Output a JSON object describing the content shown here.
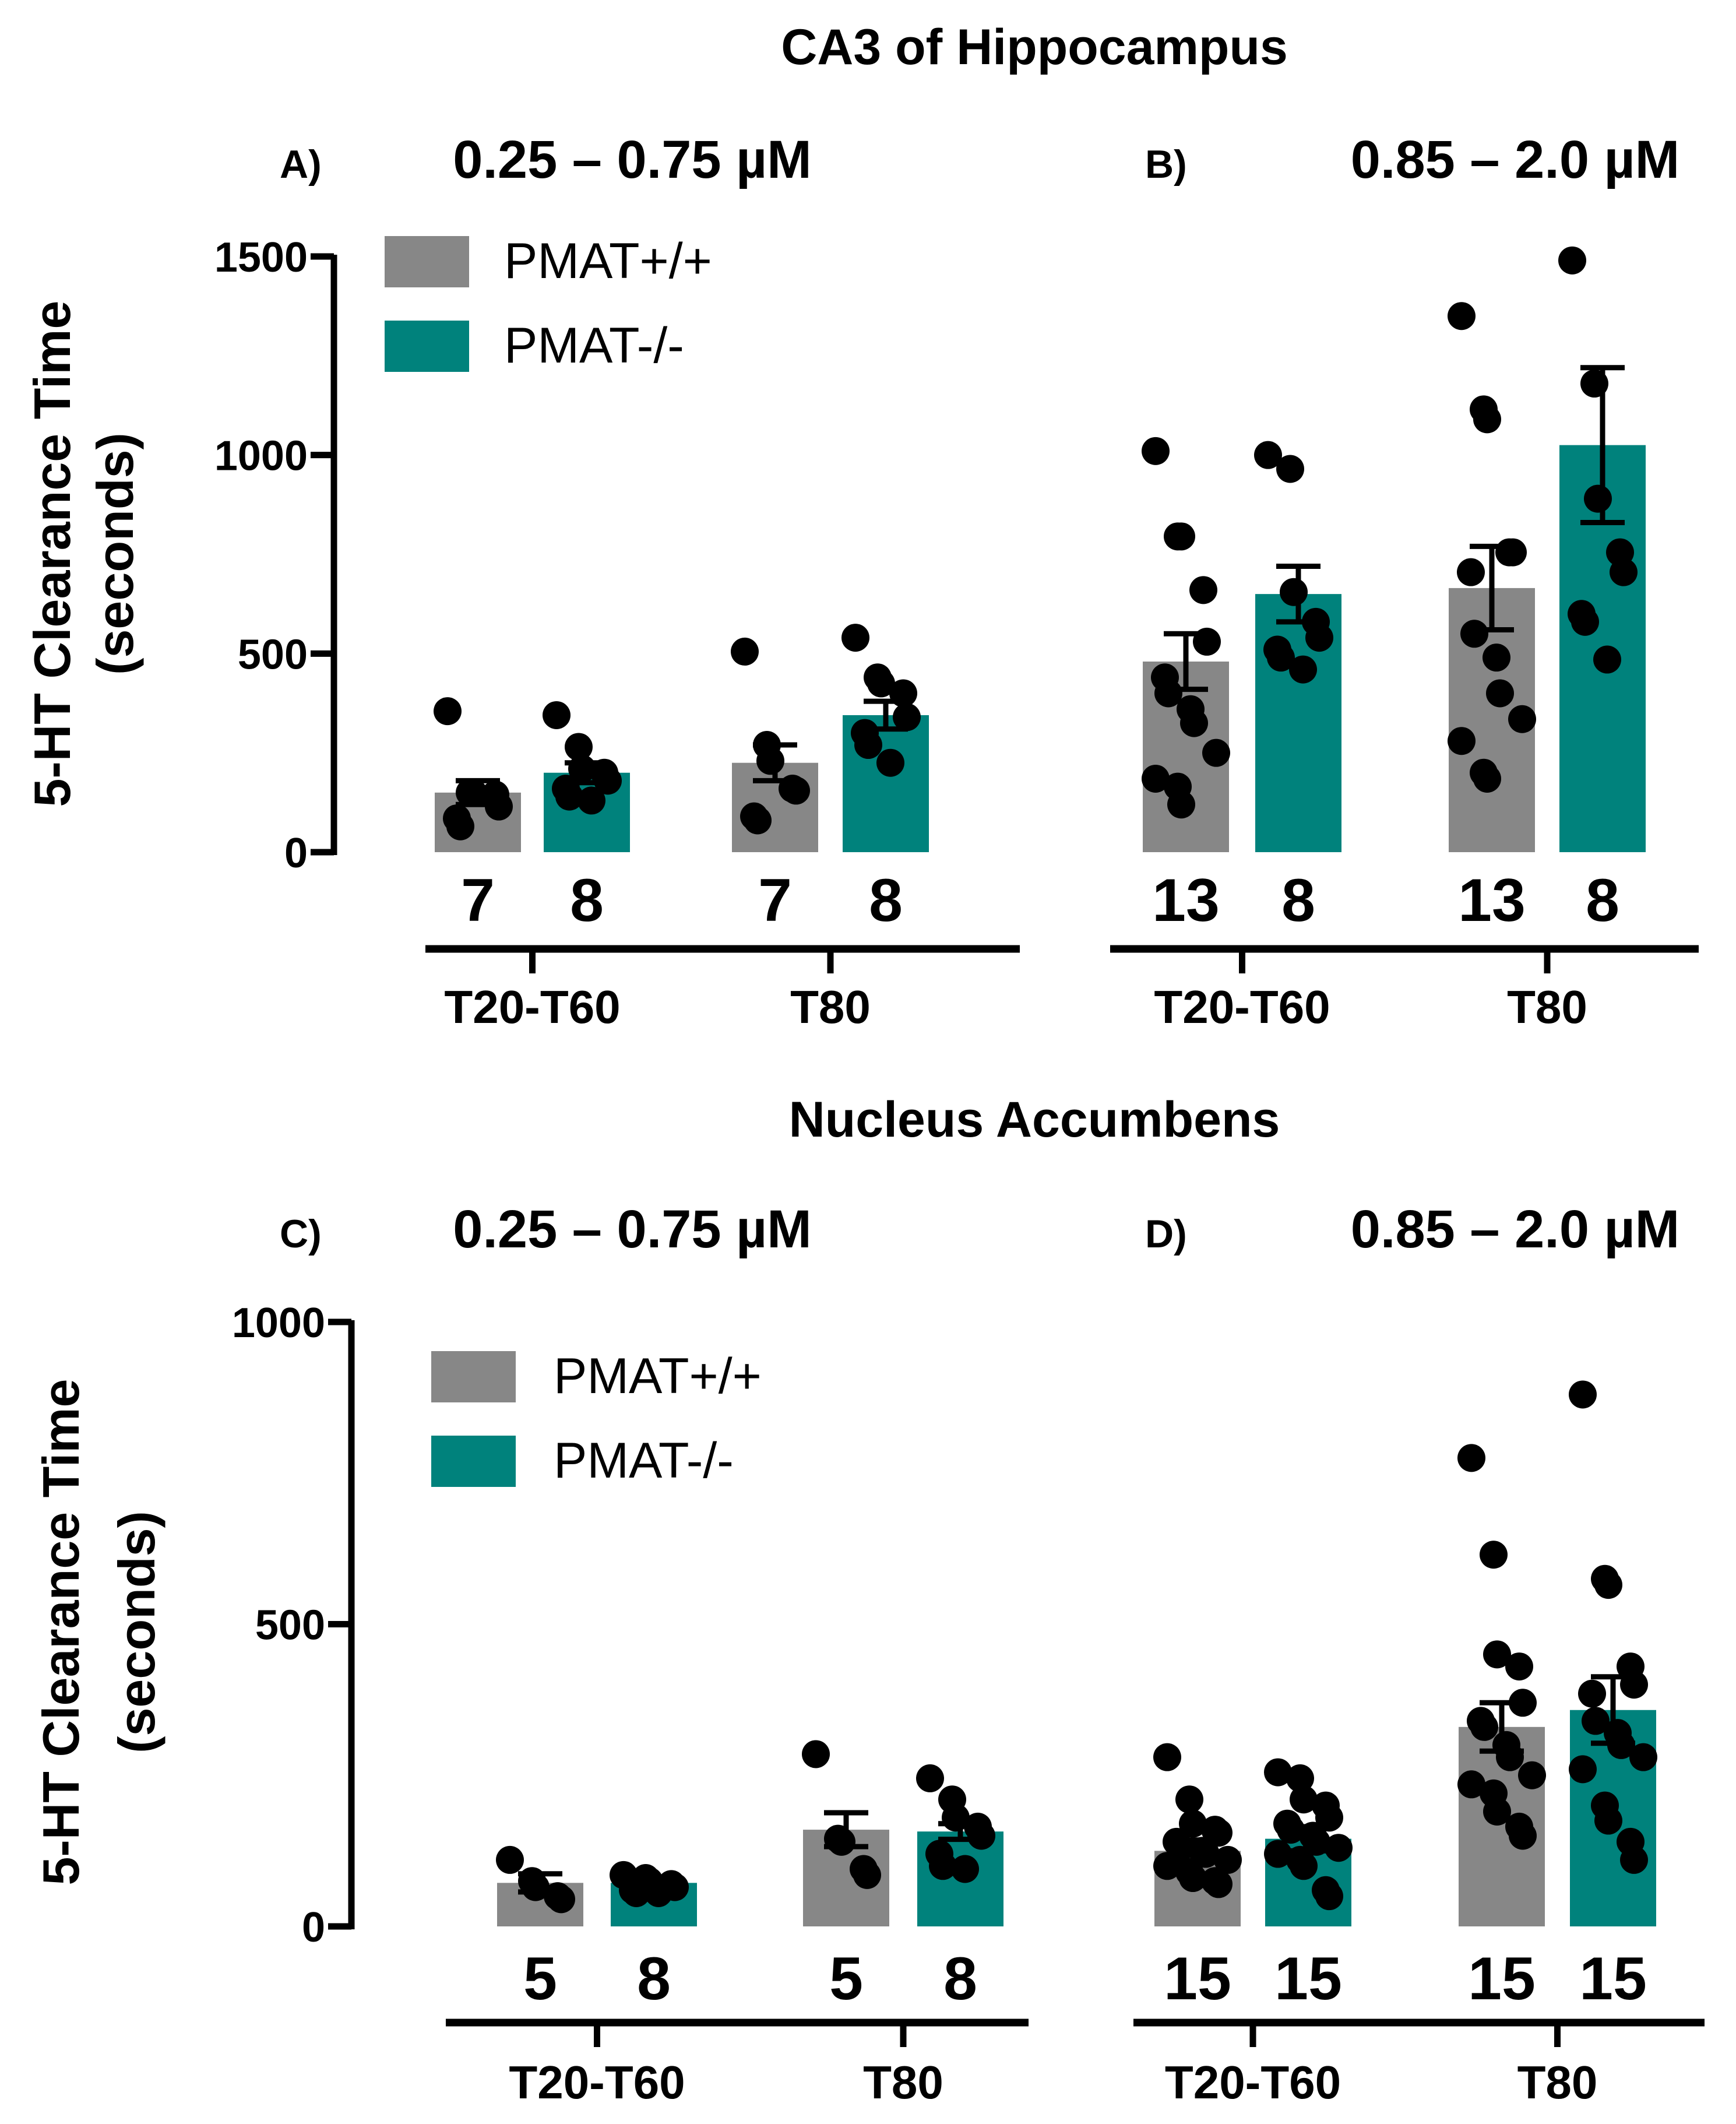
{
  "figure": {
    "colors": {
      "wt": "#878787",
      "ko": "#00827c",
      "ink": "#000000"
    }
  },
  "sections": [
    {
      "title": "CA3 of Hippocampus"
    },
    {
      "title": "Nucleus Accumbens"
    }
  ],
  "legend": {
    "wt_label": "PMAT+/+",
    "ko_label": "PMAT-/-"
  },
  "chart_data": [
    {
      "type": "bar",
      "panel": "A)",
      "subtitle": "0.25 – 0.75 µM",
      "section": "CA3 of Hippocampus",
      "ylabel": "5-HT Clearance Time (seconds)",
      "ylim": [
        0,
        1500
      ],
      "yticks": [
        0,
        500,
        1000,
        1500
      ],
      "categories": [
        "T20-T60",
        "T80"
      ],
      "series": [
        {
          "name": "PMAT+/+",
          "values": [
            150,
            225
          ],
          "sem": [
            30,
            45
          ],
          "n": [
            "7",
            "7"
          ],
          "points": [
            [
              355,
              150,
              150,
              145,
              115,
              85,
              65
            ],
            [
              505,
              270,
              230,
              160,
              155,
              90,
              80
            ]
          ]
        },
        {
          "name": "PMAT-/-",
          "values": [
            200,
            345
          ],
          "sem": [
            25,
            35
          ],
          "n": [
            "8",
            "8"
          ],
          "points": [
            [
              345,
              265,
              210,
              200,
              180,
              160,
              140,
              130
            ],
            [
              540,
              440,
              425,
              400,
              340,
              300,
              270,
              225
            ]
          ]
        }
      ]
    },
    {
      "type": "bar",
      "panel": "B)",
      "subtitle": "0.85 – 2.0 µM",
      "section": "CA3 of Hippocampus",
      "ylabel": "5-HT Clearance Time (seconds)",
      "ylim": [
        0,
        1500
      ],
      "yticks": [
        0,
        500,
        1000,
        1500
      ],
      "categories": [
        "T20-T60",
        "T80"
      ],
      "series": [
        {
          "name": "PMAT+/+",
          "values": [
            480,
            665
          ],
          "sem": [
            70,
            105
          ],
          "n": [
            "13",
            "13"
          ],
          "points": [
            [
              1010,
              795,
              795,
              660,
              530,
              440,
              400,
              360,
              325,
              250,
              185,
              165,
              120
            ],
            [
              1350,
              1115,
              1090,
              755,
              755,
              705,
              550,
              490,
              400,
              335,
              280,
              200,
              185
            ]
          ]
        },
        {
          "name": "PMAT-/-",
          "values": [
            650,
            1025
          ],
          "sem": [
            70,
            195
          ],
          "n": [
            "8",
            "8"
          ],
          "points": [
            [
              1000,
              965,
              655,
              580,
              540,
              510,
              490,
              460
            ],
            [
              1490,
              1180,
              890,
              755,
              705,
              600,
              580,
              485
            ]
          ]
        }
      ]
    },
    {
      "type": "bar",
      "panel": "C)",
      "subtitle": "0.25 – 0.75 µM",
      "section": "Nucleus Accumbens",
      "ylabel": "5-HT Clearance Time (seconds)",
      "ylim": [
        0,
        1000
      ],
      "yticks": [
        0,
        500,
        1000
      ],
      "categories": [
        "T20-T60",
        "T80"
      ],
      "series": [
        {
          "name": "PMAT+/+",
          "values": [
            72,
            160
          ],
          "sem": [
            15,
            28
          ],
          "n": [
            "5",
            "5"
          ],
          "points": [
            [
              110,
              75,
              65,
              50,
              45
            ],
            [
              285,
              145,
              140,
              95,
              85
            ]
          ]
        },
        {
          "name": "PMAT-/-",
          "values": [
            72,
            157
          ],
          "sem": [
            6,
            13
          ],
          "n": [
            "8",
            "8"
          ],
          "points": [
            [
              85,
              80,
              75,
              70,
              65,
              60,
              55,
              55
            ],
            [
              245,
              210,
              180,
              165,
              150,
              120,
              100,
              95
            ]
          ]
        }
      ]
    },
    {
      "type": "bar",
      "panel": "D)",
      "subtitle": "0.85 – 2.0 µM",
      "section": "Nucleus Accumbens",
      "ylabel": "5-HT Clearance Time (seconds)",
      "ylim": [
        0,
        1000
      ],
      "yticks": [
        0,
        500,
        1000
      ],
      "categories": [
        "T20-T60",
        "T80"
      ],
      "series": [
        {
          "name": "PMAT+/+",
          "values": [
            125,
            330
          ],
          "sem": [
            18,
            40
          ],
          "n": [
            "15",
            "15"
          ],
          "points": [
            [
              280,
              210,
              170,
              160,
              155,
              140,
              130,
              125,
              120,
              110,
              100,
              90,
              80,
              75,
              70
            ],
            [
              775,
              615,
              450,
              430,
              370,
              340,
              330,
              300,
              280,
              250,
              235,
              220,
              190,
              165,
              150
            ]
          ]
        },
        {
          "name": "PMAT-/-",
          "values": [
            145,
            358
          ],
          "sem": [
            20,
            55
          ],
          "n": [
            "15",
            "15"
          ],
          "points": [
            [
              255,
              245,
              210,
              200,
              180,
              170,
              160,
              150,
              140,
              130,
              120,
              110,
              100,
              60,
              50
            ],
            [
              880,
              575,
              565,
              430,
              400,
              385,
              340,
              320,
              300,
              280,
              260,
              200,
              175,
              140,
              110
            ]
          ]
        }
      ]
    }
  ]
}
